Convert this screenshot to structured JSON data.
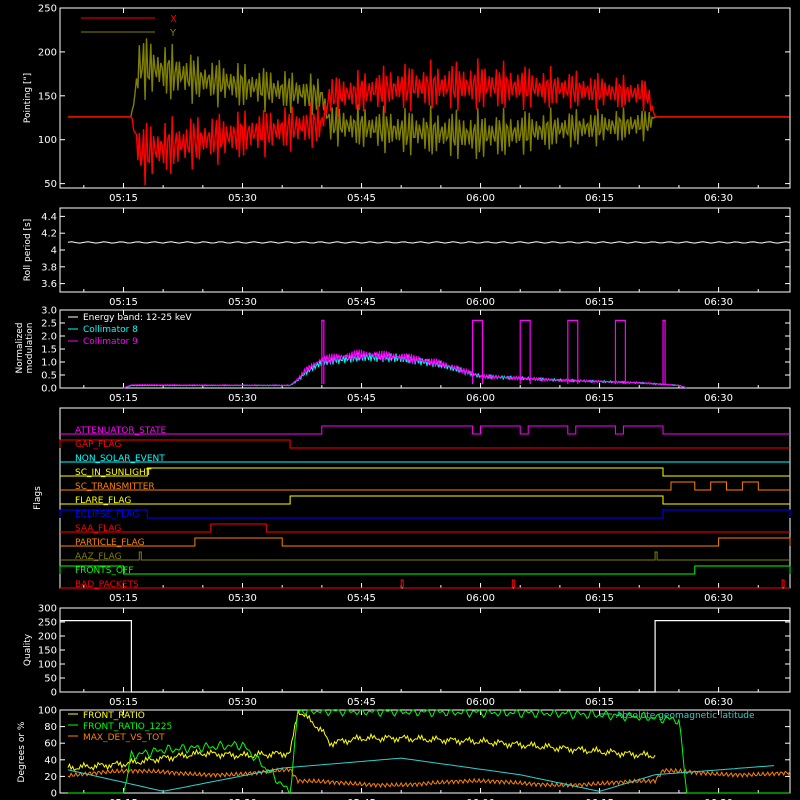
{
  "colors": {
    "background": "#000000",
    "axes": "#ffffff",
    "x": "#ff0000",
    "y": "#808000",
    "white": "#ffffff",
    "cyan": "#00ffff",
    "magenta": "#ff00ff",
    "red": "#ff0000",
    "orange": "#ff8000",
    "yellow": "#ffff00",
    "blue": "#0000ff",
    "olive": "#808000",
    "green": "#00ff00",
    "sky": "#2fd0d0"
  },
  "time_ticks": [
    "05:15",
    "05:30",
    "05:45",
    "06:00",
    "06:15",
    "06:30"
  ],
  "chart_data": [
    {
      "id": "pointing",
      "type": "line",
      "ylabel": "Pointing [\"]",
      "x_range": [
        "05:07",
        "06:39"
      ],
      "ylim": [
        45,
        250
      ],
      "yticks": [
        50,
        100,
        150,
        200,
        250
      ],
      "legend": "top-left",
      "series": [
        {
          "name": "X",
          "color": "x",
          "x": [
            "05:08",
            "05:16",
            "05:17",
            "05:25",
            "05:40",
            "05:41",
            "05:50",
            "06:00",
            "06:10",
            "06:21",
            "06:22",
            "06:39"
          ],
          "y": [
            126,
            126,
            85,
            100,
            118,
            150,
            160,
            162,
            158,
            152,
            126,
            126
          ],
          "amplitude": [
            0,
            0,
            40,
            32,
            28,
            25,
            30,
            32,
            25,
            20,
            0,
            0
          ]
        },
        {
          "name": "Y",
          "color": "y",
          "x": [
            "05:08",
            "05:16",
            "05:17",
            "05:25",
            "05:40",
            "05:41",
            "05:50",
            "06:00",
            "06:10",
            "06:21",
            "06:22",
            "06:39"
          ],
          "y": [
            126,
            126,
            185,
            168,
            150,
            118,
            110,
            105,
            112,
            118,
            126,
            126
          ],
          "amplitude": [
            0,
            0,
            40,
            30,
            25,
            25,
            30,
            32,
            25,
            20,
            0,
            0
          ]
        }
      ]
    },
    {
      "id": "roll",
      "type": "line",
      "ylabel": "Roll period [s]",
      "x_range": [
        "05:07",
        "06:39"
      ],
      "ylim": [
        3.5,
        4.5
      ],
      "yticks": [
        3.6,
        3.8,
        4.0,
        4.2,
        4.4
      ],
      "series": [
        {
          "color": "white",
          "x": [
            "05:08",
            "06:39"
          ],
          "y": [
            4.09,
            4.09
          ]
        }
      ]
    },
    {
      "id": "modulation",
      "type": "line",
      "ylabel": "Normalized modulation",
      "x_range": [
        "05:07",
        "06:39"
      ],
      "ylim": [
        0,
        3
      ],
      "yticks": [
        "0.0",
        "0.5",
        "1.0",
        "1.5",
        "2.0",
        "2.5",
        "3.0"
      ],
      "legend_title": "Energy band: 12-25 keV",
      "legend": "top-left",
      "series": [
        {
          "name": "Collimator 8",
          "color": "cyan",
          "x": [
            "05:15",
            "05:16",
            "05:36",
            "05:37",
            "05:38",
            "05:40",
            "05:45",
            "05:50",
            "05:55",
            "06:00",
            "06:10",
            "06:20",
            "06:25",
            "06:26"
          ],
          "y": [
            0,
            0.1,
            0.1,
            0.3,
            0.6,
            1.0,
            1.2,
            1.15,
            0.9,
            0.45,
            0.3,
            0.2,
            0.1,
            0
          ]
        },
        {
          "name": "Collimator 9",
          "color": "magenta",
          "x": [
            "05:15",
            "05:16",
            "05:36",
            "05:37",
            "05:38",
            "05:40",
            "05:45",
            "05:50",
            "05:55",
            "06:00",
            "06:10",
            "06:20",
            "06:25",
            "06:26"
          ],
          "y": [
            0,
            0.12,
            0.1,
            0.35,
            0.7,
            1.1,
            1.3,
            1.2,
            0.95,
            0.45,
            0.3,
            0.2,
            0.1,
            0
          ]
        }
      ],
      "spikes": {
        "color": "magenta",
        "y": 2.6,
        "intervals": [
          [
            "05:40",
            "05:40"
          ],
          [
            "05:59",
            "06:00"
          ],
          [
            "06:05",
            "06:06"
          ],
          [
            "06:11",
            "06:12"
          ],
          [
            "06:17",
            "06:18"
          ],
          [
            "06:23",
            "06:23"
          ]
        ]
      }
    },
    {
      "id": "flags",
      "type": "step",
      "ylabel": "Flags",
      "x_range": [
        "05:07",
        "06:39"
      ],
      "flags": [
        {
          "name": "ATTENUATOR_STATE",
          "color": "magenta",
          "on": [
            [
              "05:40",
              "05:59"
            ],
            [
              "06:00",
              "06:05"
            ],
            [
              "06:06",
              "06:11"
            ],
            [
              "06:12",
              "06:17"
            ],
            [
              "06:18",
              "06:23"
            ]
          ]
        },
        {
          "name": "GAP_FLAG",
          "color": "red",
          "on": [
            [
              "05:07",
              "05:36"
            ]
          ]
        },
        {
          "name": "NON_SOLAR_EVENT",
          "color": "cyan",
          "on": []
        },
        {
          "name": "SC_IN_SUNLIGHT",
          "color": "yellow",
          "on": [
            [
              "05:18",
              "06:23"
            ]
          ]
        },
        {
          "name": "SC_TRANSMITTER",
          "color": "orange",
          "on": [
            [
              "06:24",
              "06:27"
            ],
            [
              "06:29",
              "06:31"
            ],
            [
              "06:33",
              "06:35"
            ]
          ]
        },
        {
          "name": "FLARE_FLAG",
          "color": "yellow",
          "on": [
            [
              "05:36",
              "06:23"
            ]
          ]
        },
        {
          "name": "ECLIPSE_FLAG",
          "color": "blue",
          "on": [
            [
              "05:07",
              "05:18"
            ],
            [
              "06:23",
              "06:39"
            ]
          ]
        },
        {
          "name": "SAA_FLAG",
          "color": "red",
          "on": [
            [
              "05:26",
              "05:33"
            ]
          ]
        },
        {
          "name": "PARTICLE_FLAG",
          "color": "orange",
          "on": [
            [
              "05:24",
              "05:35"
            ],
            [
              "06:30",
              "06:39"
            ]
          ]
        },
        {
          "name": "AAZ_FLAG",
          "color": "olive",
          "on": [
            [
              "05:17",
              "05:17"
            ],
            [
              "06:22",
              "06:22"
            ]
          ]
        },
        {
          "name": "FRONTS_OFF",
          "color": "green",
          "on": [
            [
              "05:07",
              "05:15"
            ],
            [
              "06:27",
              "06:39"
            ]
          ]
        },
        {
          "name": "BAD_PACKETS",
          "color": "red",
          "on": [
            [
              "05:50",
              "05:50"
            ],
            [
              "06:04",
              "06:04"
            ],
            [
              "06:38",
              "06:38"
            ]
          ]
        }
      ]
    },
    {
      "id": "quality",
      "type": "line",
      "ylabel": "Quality",
      "x_range": [
        "05:07",
        "06:39"
      ],
      "ylim": [
        0,
        300
      ],
      "yticks": [
        0,
        50,
        100,
        150,
        200,
        250,
        300
      ],
      "series": [
        {
          "color": "white",
          "x": [
            "05:07",
            "05:16",
            "05:16",
            "06:22",
            "06:22",
            "06:39"
          ],
          "y": [
            255,
            255,
            0,
            0,
            255,
            255
          ]
        }
      ]
    },
    {
      "id": "ratios",
      "type": "line",
      "ylabel": "Degrees or %",
      "x_range": [
        "05:07",
        "06:39"
      ],
      "ylim": [
        0,
        100
      ],
      "yticks": [
        0,
        20,
        40,
        60,
        80,
        100
      ],
      "legend": "top-left",
      "series": [
        {
          "name": "FRONT_RATIO",
          "color": "yellow",
          "x": [
            "05:08",
            "05:15",
            "05:20",
            "05:25",
            "05:30",
            "05:36",
            "05:37",
            "05:40",
            "05:41",
            "05:45",
            "05:50",
            "05:55",
            "06:00",
            "06:05",
            "06:10",
            "06:15",
            "06:20",
            "06:22"
          ],
          "y": [
            30,
            35,
            42,
            48,
            45,
            48,
            100,
            75,
            60,
            66,
            66,
            64,
            62,
            58,
            54,
            50,
            46,
            45
          ]
        },
        {
          "name": "FRONT_RATIO_1225",
          "color": "green",
          "x": [
            "05:08",
            "05:15",
            "05:16",
            "05:20",
            "05:25",
            "05:30",
            "05:36",
            "05:37",
            "05:50",
            "06:10",
            "06:20",
            "06:25",
            "06:26",
            "06:39"
          ],
          "y": [
            0,
            0,
            45,
            52,
            55,
            58,
            0,
            99,
            98,
            96,
            92,
            88,
            0,
            0
          ]
        },
        {
          "name": "MAX_DET_VS_TOT",
          "color": "orange",
          "x": [
            "05:08",
            "05:15",
            "05:20",
            "05:30",
            "05:36",
            "05:37",
            "06:22",
            "06:23",
            "06:39"
          ],
          "y": [
            22,
            24,
            25,
            24,
            26,
            12,
            12,
            25,
            24
          ]
        },
        {
          "name": "Absolute geomagnetic latitude",
          "color": "sky",
          "x": [
            "05:08",
            "05:20",
            "05:35",
            "05:50",
            "06:05",
            "06:15",
            "06:22",
            "06:37"
          ],
          "y": [
            28,
            2,
            30,
            42,
            22,
            2,
            22,
            33
          ]
        }
      ]
    }
  ]
}
